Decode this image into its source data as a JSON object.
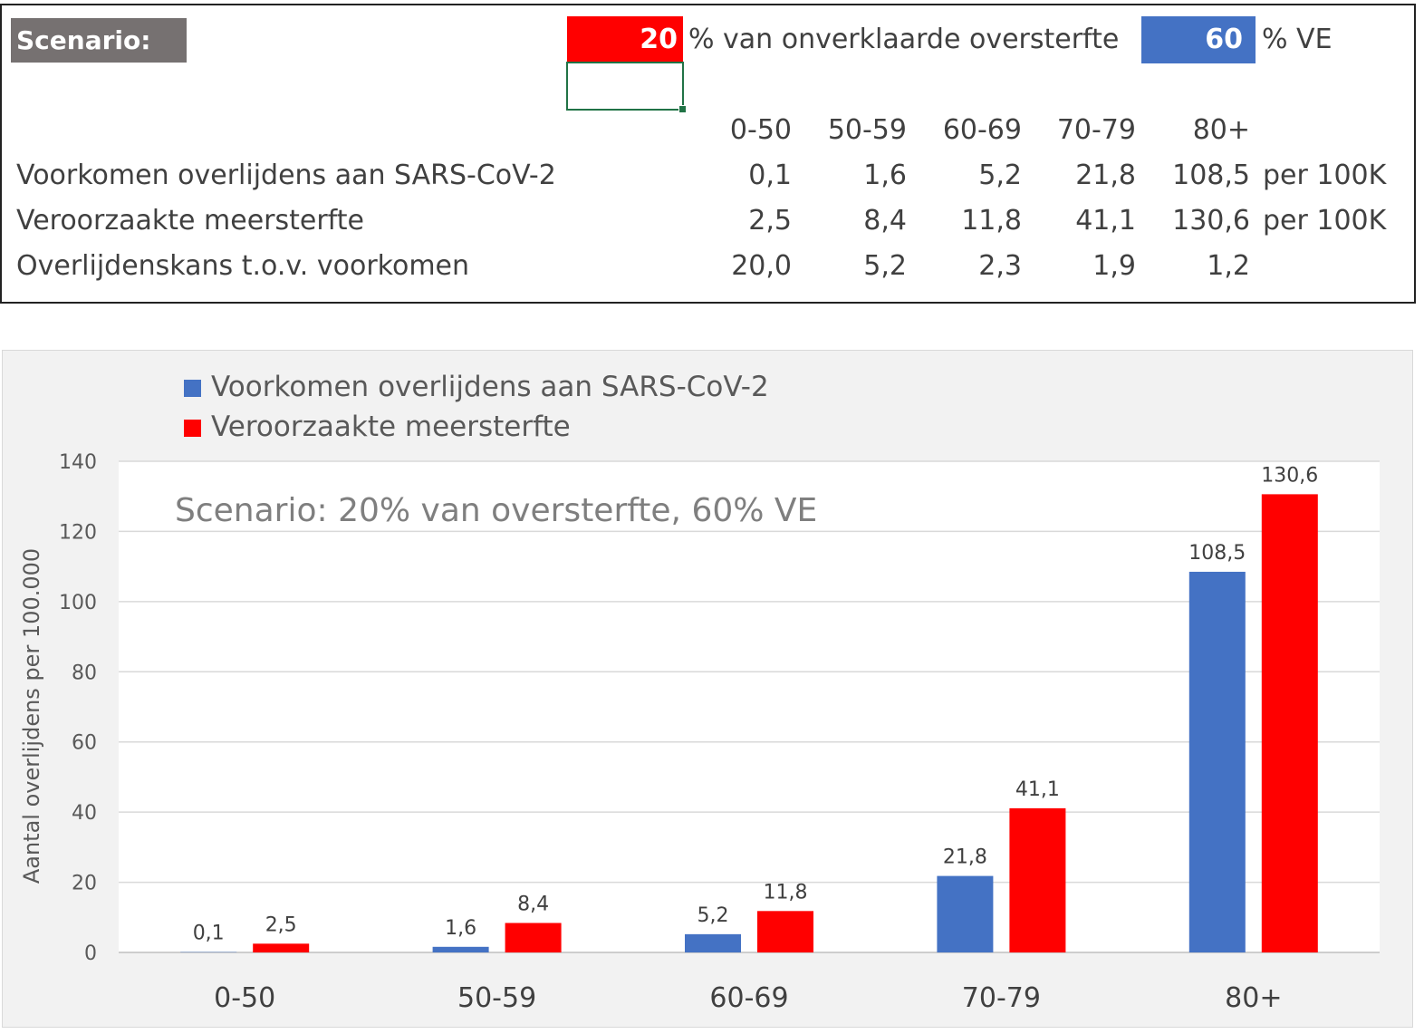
{
  "sheet": {
    "scenario_label": "Scenario:",
    "oversterfte_pct": "20",
    "oversterfte_label": "% van onverklaarde oversterfte",
    "ve_pct": "60",
    "ve_label": "% VE",
    "age_groups": [
      "0-50",
      "50-59",
      "60-69",
      "70-79",
      "80+"
    ],
    "rows": [
      {
        "label": "Voorkomen overlijdens aan SARS-CoV-2",
        "values": [
          "0,1",
          "1,6",
          "5,2",
          "21,8",
          "108,5"
        ],
        "unit": "per 100K"
      },
      {
        "label": "Veroorzaakte meersterfte",
        "values": [
          "2,5",
          "8,4",
          "11,8",
          "41,1",
          "130,6"
        ],
        "unit": "per 100K"
      },
      {
        "label": "Overlijdenskans t.o.v. voorkomen",
        "values": [
          "20,0",
          "5,2",
          "2,3",
          "1,9",
          "1,2"
        ],
        "unit": ""
      }
    ],
    "colors": {
      "red": "#ff0000",
      "blue": "#4472c4",
      "label_bg": "#767171"
    }
  },
  "chart_data": {
    "type": "bar",
    "title": "",
    "annotation": "Scenario: 20% van oversterfte,  60% VE",
    "categories": [
      "0-50",
      "50-59",
      "60-69",
      "70-79",
      "80+"
    ],
    "series": [
      {
        "name": "Voorkomen overlijdens aan SARS-CoV-2",
        "color": "#4472c4",
        "values": [
          0.1,
          1.6,
          5.2,
          21.8,
          108.5
        ],
        "labels": [
          "0,1",
          "1,6",
          "5,2",
          "21,8",
          "108,5"
        ]
      },
      {
        "name": "Veroorzaakte meersterfte",
        "color": "#ff0000",
        "values": [
          2.5,
          8.4,
          11.8,
          41.1,
          130.6
        ],
        "labels": [
          "2,5",
          "8,4",
          "11,8",
          "41,1",
          "130,6"
        ]
      }
    ],
    "xlabel": "",
    "ylabel": "Aantal overlijdens  per 100.000",
    "ylim": [
      0,
      140
    ],
    "yticks": [
      0,
      20,
      40,
      60,
      80,
      100,
      120,
      140
    ],
    "grid": true,
    "legend_position": "top-left"
  }
}
